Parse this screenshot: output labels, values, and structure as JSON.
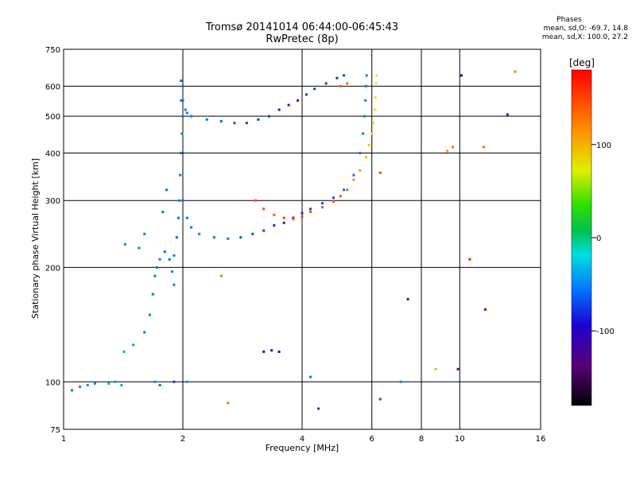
{
  "header": {
    "title_line1": "Tromsø 20141014 06:44:00-06:45:43",
    "title_line2": "RwPretec (8p)"
  },
  "stats": {
    "heading": "Phases",
    "line_o": "mean, sd,O: -69.7, 14.8",
    "line_x": "mean, sd,X: 100.0, 27.2"
  },
  "chart_data": {
    "type": "scatter",
    "title": "Tromsø 20141014 06:44:00-06:45:43",
    "subtitle": "RwPretec (8p)",
    "xlabel": "Frequency [MHz]",
    "ylabel": "Stationary phase Virtual Height [km]",
    "x_scale": "log",
    "y_scale": "log",
    "xlim": [
      1,
      16
    ],
    "ylim": [
      75,
      750
    ],
    "x_ticks": [
      1,
      2,
      4,
      6,
      8,
      10,
      16
    ],
    "y_ticks": [
      75,
      100,
      200,
      300,
      400,
      500,
      600,
      750
    ],
    "grid": true,
    "colorbar": {
      "label": "[deg]",
      "ticks": [
        100,
        0,
        -100
      ],
      "range": [
        -180,
        180
      ]
    },
    "series": [
      {
        "values": [
          [
            1.05,
            95,
            -60
          ],
          [
            1.1,
            97,
            -55
          ],
          [
            1.15,
            98,
            -50
          ],
          [
            1.2,
            99,
            -50
          ],
          [
            1.3,
            99,
            -45
          ],
          [
            1.35,
            100,
            -45
          ],
          [
            1.4,
            98,
            -40
          ],
          [
            1.7,
            100,
            -50
          ],
          [
            1.75,
            98,
            -60
          ],
          [
            1.9,
            100,
            -80
          ],
          [
            2.05,
            100,
            -50
          ],
          [
            1.42,
            120,
            -40
          ],
          [
            1.5,
            125,
            -50
          ],
          [
            1.6,
            135,
            -60
          ],
          [
            1.65,
            150,
            -55
          ],
          [
            1.68,
            170,
            -60
          ],
          [
            1.7,
            190,
            -60
          ],
          [
            1.72,
            200,
            -60
          ],
          [
            1.75,
            210,
            -60
          ],
          [
            1.8,
            220,
            -65
          ],
          [
            1.85,
            210,
            -60
          ],
          [
            1.9,
            215,
            -60
          ],
          [
            1.93,
            240,
            -60
          ],
          [
            1.95,
            270,
            -60
          ],
          [
            1.96,
            300,
            -55
          ],
          [
            1.97,
            350,
            -60
          ],
          [
            1.98,
            400,
            -60
          ],
          [
            1.99,
            450,
            -60
          ],
          [
            2.0,
            500,
            -60
          ],
          [
            2.0,
            550,
            -60
          ],
          [
            2.0,
            600,
            -60
          ],
          [
            1.98,
            620,
            -60
          ],
          [
            1.43,
            230,
            -55
          ],
          [
            1.55,
            225,
            -55
          ],
          [
            1.6,
            245,
            -55
          ],
          [
            1.78,
            280,
            -60
          ],
          [
            1.82,
            320,
            -60
          ],
          [
            1.9,
            180,
            -55
          ],
          [
            1.88,
            195,
            -55
          ],
          [
            1.98,
            550,
            -60
          ],
          [
            2.03,
            520,
            -55
          ],
          [
            2.05,
            510,
            -55
          ],
          [
            2.1,
            500,
            -55
          ],
          [
            2.3,
            490,
            -60
          ],
          [
            2.5,
            485,
            -65
          ],
          [
            2.7,
            480,
            -70
          ],
          [
            2.9,
            480,
            -75
          ],
          [
            3.1,
            490,
            -80
          ],
          [
            3.3,
            500,
            -80
          ],
          [
            3.5,
            520,
            -85
          ],
          [
            3.7,
            535,
            -90
          ],
          [
            3.9,
            550,
            -85
          ],
          [
            4.1,
            570,
            -80
          ],
          [
            4.3,
            590,
            -80
          ],
          [
            4.6,
            610,
            -80
          ],
          [
            4.9,
            630,
            -85
          ],
          [
            5.1,
            640,
            -80
          ],
          [
            2.0,
            300,
            -60
          ],
          [
            2.05,
            270,
            -55
          ],
          [
            2.1,
            255,
            -55
          ],
          [
            2.2,
            245,
            -55
          ],
          [
            2.4,
            240,
            -60
          ],
          [
            2.6,
            238,
            -60
          ],
          [
            2.8,
            240,
            -70
          ],
          [
            3.0,
            245,
            -75
          ],
          [
            3.2,
            250,
            -80
          ],
          [
            3.4,
            258,
            -85
          ],
          [
            3.6,
            262,
            -90
          ],
          [
            3.8,
            270,
            -90
          ],
          [
            4.0,
            278,
            -85
          ],
          [
            4.2,
            285,
            -80
          ],
          [
            4.5,
            295,
            -75
          ],
          [
            4.8,
            305,
            -70
          ],
          [
            5.1,
            320,
            -65
          ],
          [
            5.4,
            350,
            -60
          ],
          [
            5.6,
            400,
            -58
          ],
          [
            5.7,
            450,
            -56
          ],
          [
            5.75,
            500,
            -55
          ],
          [
            5.78,
            550,
            -55
          ],
          [
            5.8,
            600,
            -55
          ],
          [
            5.82,
            640,
            -55
          ],
          [
            3.2,
            120,
            -120
          ],
          [
            3.35,
            121,
            -120
          ],
          [
            3.5,
            120,
            -110
          ],
          [
            4.2,
            103,
            -60
          ],
          [
            4.4,
            85,
            -80
          ],
          [
            6.3,
            90,
            -70
          ],
          [
            7.1,
            100,
            -50
          ],
          [
            7.4,
            165,
            -90
          ],
          [
            9.9,
            108,
            -140
          ],
          [
            10.1,
            640,
            -100
          ],
          [
            11.6,
            155,
            -90
          ],
          [
            13.2,
            505,
            -140
          ],
          [
            3.05,
            300,
            145
          ],
          [
            3.2,
            285,
            145
          ],
          [
            3.4,
            275,
            140
          ],
          [
            3.6,
            270,
            150
          ],
          [
            3.8,
            268,
            140
          ],
          [
            4.0,
            272,
            150
          ],
          [
            4.2,
            280,
            145
          ],
          [
            4.5,
            288,
            145
          ],
          [
            4.8,
            298,
            140
          ],
          [
            5.0,
            308,
            145
          ],
          [
            5.2,
            320,
            135
          ],
          [
            5.4,
            340,
            120
          ],
          [
            5.6,
            360,
            110
          ],
          [
            5.8,
            390,
            95
          ],
          [
            5.9,
            420,
            90
          ],
          [
            6.0,
            450,
            80
          ],
          [
            6.05,
            480,
            75
          ],
          [
            6.1,
            520,
            70
          ],
          [
            6.12,
            560,
            70
          ],
          [
            6.15,
            610,
            70
          ],
          [
            6.17,
            640,
            70
          ],
          [
            5.0,
            600,
            140
          ],
          [
            5.2,
            610,
            130
          ],
          [
            6.3,
            355,
            150
          ],
          [
            8.7,
            108,
            55
          ],
          [
            9.3,
            405,
            110
          ],
          [
            9.6,
            415,
            130
          ],
          [
            11.5,
            415,
            130
          ],
          [
            13.8,
            655,
            125
          ],
          [
            2.6,
            88,
            130
          ],
          [
            10.6,
            210,
            170
          ],
          [
            2.5,
            190,
            130
          ]
        ]
      }
    ]
  }
}
